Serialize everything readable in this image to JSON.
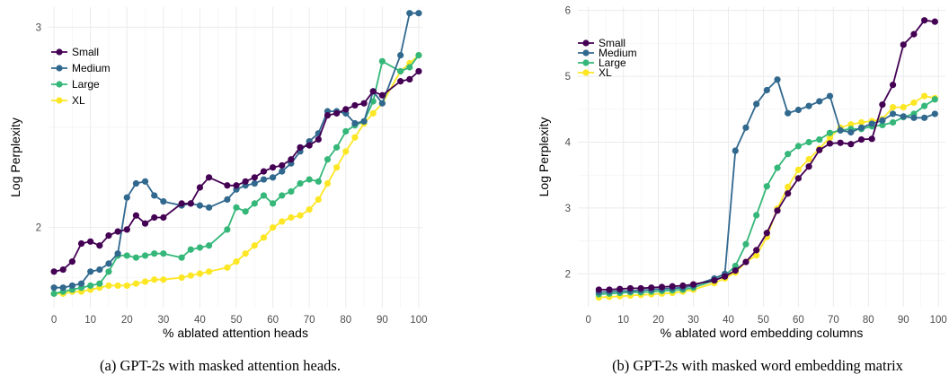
{
  "chart_data": [
    {
      "type": "line",
      "caption": "(a) GPT-2s with masked attention heads.",
      "xlabel": "% ablated attention heads",
      "ylabel": "Log Perplexity",
      "xlim": [
        -1.5,
        101
      ],
      "ylim": [
        1.6,
        3.1
      ],
      "xticks": [
        0,
        10,
        20,
        30,
        40,
        50,
        60,
        70,
        80,
        90,
        100
      ],
      "yticks": [
        2,
        3
      ],
      "grid": true,
      "legend_position": "top-left",
      "series": [
        {
          "name": "Small",
          "color": "#440154",
          "x": [
            0,
            2.5,
            5,
            7.5,
            10,
            12.5,
            15,
            17.5,
            20,
            22.5,
            25,
            27.5,
            30,
            35,
            37.5,
            40,
            42.5,
            47.5,
            50,
            52.5,
            55,
            57.5,
            60,
            62.5,
            65,
            67.5,
            70,
            72.5,
            75,
            77.5,
            80,
            82.5,
            85,
            87.5,
            90,
            95,
            97.5,
            100
          ],
          "y": [
            1.78,
            1.79,
            1.83,
            1.92,
            1.93,
            1.91,
            1.96,
            1.98,
            1.99,
            2.06,
            2.02,
            2.05,
            2.05,
            2.12,
            2.12,
            2.2,
            2.25,
            2.21,
            2.21,
            2.23,
            2.25,
            2.28,
            2.3,
            2.31,
            2.34,
            2.4,
            2.41,
            2.44,
            2.56,
            2.57,
            2.59,
            2.61,
            2.62,
            2.68,
            2.66,
            2.73,
            2.74,
            2.78
          ]
        },
        {
          "name": "Medium",
          "color": "#31688e",
          "x": [
            0,
            2.5,
            5,
            7.5,
            10,
            12.5,
            15,
            17.5,
            20,
            22.5,
            25,
            27.5,
            30,
            35,
            37.5,
            40,
            42.5,
            47.5,
            50,
            52.5,
            55,
            57.5,
            60,
            62.5,
            65,
            67.5,
            70,
            72.5,
            75,
            77.5,
            80,
            82.5,
            85,
            87.5,
            90,
            95,
            97.5,
            100
          ],
          "y": [
            1.7,
            1.7,
            1.71,
            1.72,
            1.78,
            1.79,
            1.82,
            1.87,
            2.15,
            2.22,
            2.23,
            2.16,
            2.13,
            2.11,
            2.12,
            2.11,
            2.1,
            2.14,
            2.19,
            2.21,
            2.22,
            2.24,
            2.25,
            2.28,
            2.32,
            2.38,
            2.43,
            2.47,
            2.58,
            2.58,
            2.57,
            2.52,
            2.53,
            2.68,
            2.62,
            2.86,
            3.07,
            3.07
          ]
        },
        {
          "name": "Large",
          "color": "#35b779",
          "x": [
            0,
            2.5,
            5,
            7.5,
            10,
            12.5,
            15,
            17.5,
            20,
            22.5,
            25,
            27.5,
            30,
            35,
            37.5,
            40,
            42.5,
            47.5,
            50,
            52.5,
            55,
            57.5,
            60,
            62.5,
            65,
            67.5,
            70,
            72.5,
            75,
            77.5,
            80,
            82.5,
            85,
            87.5,
            90,
            95,
            97.5,
            100
          ],
          "y": [
            1.67,
            1.68,
            1.69,
            1.7,
            1.71,
            1.72,
            1.78,
            1.86,
            1.86,
            1.85,
            1.86,
            1.87,
            1.87,
            1.85,
            1.89,
            1.9,
            1.91,
            1.99,
            2.1,
            2.08,
            2.12,
            2.16,
            2.12,
            2.16,
            2.18,
            2.22,
            2.24,
            2.23,
            2.34,
            2.4,
            2.48,
            2.51,
            2.53,
            2.63,
            2.83,
            2.78,
            2.8,
            2.86
          ]
        },
        {
          "name": "XL",
          "color": "#fde725",
          "x": [
            0,
            2.5,
            5,
            7.5,
            10,
            12.5,
            15,
            17.5,
            20,
            22.5,
            25,
            27.5,
            30,
            35,
            37.5,
            40,
            42.5,
            47.5,
            50,
            52.5,
            55,
            57.5,
            60,
            62.5,
            65,
            67.5,
            70,
            72.5,
            75,
            77.5,
            80,
            82.5,
            85,
            87.5,
            90,
            95,
            97.5,
            100
          ],
          "y": [
            1.67,
            1.67,
            1.68,
            1.68,
            1.69,
            1.7,
            1.71,
            1.71,
            1.71,
            1.72,
            1.73,
            1.74,
            1.74,
            1.75,
            1.76,
            1.77,
            1.78,
            1.8,
            1.83,
            1.87,
            1.91,
            1.95,
            2.0,
            2.03,
            2.05,
            2.06,
            2.09,
            2.14,
            2.22,
            2.3,
            2.38,
            2.45,
            2.52,
            2.57,
            2.62,
            2.78,
            2.82,
            2.86
          ]
        }
      ]
    },
    {
      "type": "line",
      "caption": "(b) GPT-2s with masked word embedding matrix",
      "xlabel": "% ablated word embedding columns",
      "ylabel": "Log Perplexity",
      "xlim": [
        -3,
        102
      ],
      "ylim": [
        1.5,
        6.05
      ],
      "xticks": [
        0,
        10,
        20,
        30,
        40,
        50,
        60,
        70,
        80,
        90,
        100
      ],
      "yticks": [
        2,
        3,
        4,
        5,
        6
      ],
      "grid": true,
      "legend_position": "top-left",
      "series": [
        {
          "name": "Small",
          "color": "#440154",
          "x": [
            3,
            6,
            9,
            12,
            15,
            18,
            21,
            24,
            27,
            30,
            36,
            39,
            42,
            45,
            48,
            51,
            54,
            57,
            60,
            63,
            66,
            69,
            72,
            75,
            78,
            81,
            84,
            87,
            90,
            93,
            96,
            99
          ],
          "y": [
            1.76,
            1.76,
            1.77,
            1.78,
            1.78,
            1.79,
            1.8,
            1.81,
            1.82,
            1.84,
            1.9,
            1.96,
            2.05,
            2.18,
            2.36,
            2.62,
            2.96,
            3.22,
            3.45,
            3.63,
            3.88,
            3.98,
            3.99,
            3.97,
            4.04,
            4.05,
            4.57,
            4.87,
            5.48,
            5.64,
            5.85,
            5.83
          ]
        },
        {
          "name": "Medium",
          "color": "#31688e",
          "x": [
            3,
            6,
            9,
            12,
            15,
            18,
            21,
            24,
            27,
            30,
            36,
            39,
            42,
            45,
            48,
            51,
            54,
            57,
            60,
            63,
            66,
            69,
            72,
            75,
            78,
            81,
            84,
            87,
            90,
            93,
            96,
            99
          ],
          "y": [
            1.72,
            1.73,
            1.74,
            1.74,
            1.75,
            1.76,
            1.77,
            1.78,
            1.79,
            1.82,
            1.93,
            2.0,
            3.87,
            4.22,
            4.58,
            4.79,
            4.95,
            4.44,
            4.49,
            4.55,
            4.62,
            4.7,
            4.18,
            4.15,
            4.22,
            4.28,
            4.33,
            4.43,
            4.39,
            4.37,
            4.37,
            4.43
          ]
        },
        {
          "name": "Large",
          "color": "#35b779",
          "x": [
            3,
            6,
            9,
            12,
            15,
            18,
            21,
            24,
            27,
            30,
            36,
            39,
            42,
            45,
            48,
            51,
            54,
            57,
            60,
            63,
            66,
            69,
            72,
            75,
            78,
            81,
            84,
            87,
            90,
            93,
            96,
            99
          ],
          "y": [
            1.69,
            1.7,
            1.71,
            1.72,
            1.72,
            1.73,
            1.74,
            1.75,
            1.76,
            1.79,
            1.9,
            1.97,
            2.12,
            2.45,
            2.89,
            3.33,
            3.61,
            3.82,
            3.94,
            4.0,
            4.04,
            4.14,
            4.18,
            4.2,
            4.2,
            4.24,
            4.26,
            4.3,
            4.38,
            4.43,
            4.55,
            4.65
          ]
        },
        {
          "name": "XL",
          "color": "#fde725",
          "x": [
            3,
            6,
            9,
            12,
            15,
            18,
            21,
            24,
            27,
            30,
            36,
            39,
            42,
            45,
            48,
            51,
            54,
            57,
            60,
            63,
            66,
            69,
            72,
            75,
            78,
            81,
            84,
            87,
            90,
            93,
            96,
            99
          ],
          "y": [
            1.64,
            1.65,
            1.66,
            1.67,
            1.68,
            1.69,
            1.7,
            1.71,
            1.73,
            1.76,
            1.86,
            1.93,
            2.02,
            2.18,
            2.28,
            2.56,
            2.99,
            3.32,
            3.58,
            3.74,
            3.9,
            4.07,
            4.22,
            4.27,
            4.3,
            4.32,
            4.35,
            4.53,
            4.53,
            4.6,
            4.7,
            4.67
          ]
        }
      ]
    }
  ]
}
